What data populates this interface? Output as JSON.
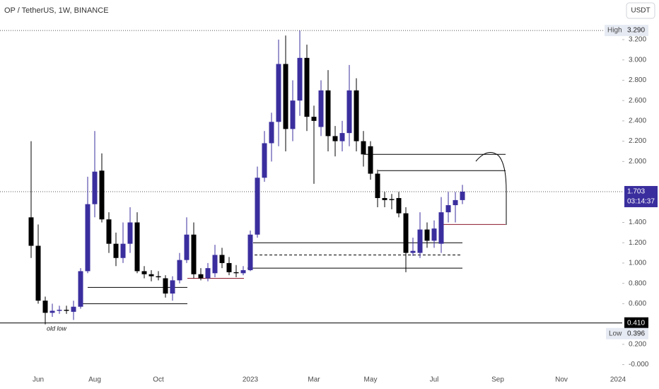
{
  "chart_data": {
    "type": "candlestick",
    "title": "OP / TetherUS, 1W, BINANCE",
    "currency_button": "USDT",
    "annotation": "old low",
    "up_color": "#3a2e9e",
    "down_color": "#000000",
    "categories": [
      null,
      "Jun",
      null,
      null,
      null,
      null,
      null,
      null,
      null,
      "Aug",
      null,
      null,
      null,
      null,
      null,
      null,
      null,
      null,
      "Oct",
      null,
      null,
      null,
      null,
      null,
      null,
      null,
      null,
      null,
      null,
      null,
      null,
      "2023",
      null,
      null,
      null,
      null,
      null,
      null,
      null,
      null,
      "Mar",
      null,
      null,
      null,
      null,
      null,
      null,
      null,
      "May",
      null,
      null,
      null,
      null,
      null,
      null,
      null,
      null,
      "Jul",
      null,
      null,
      null,
      null,
      null,
      null,
      null,
      null,
      "Sep",
      null,
      null,
      null,
      null,
      null,
      null,
      null,
      null,
      "Nov",
      null,
      null,
      null,
      null,
      null,
      null,
      null,
      "2024"
    ],
    "open": [
      1.45,
      1.17,
      0.63,
      0.51,
      0.53,
      0.54,
      0.52,
      0.57,
      0.92,
      1.58,
      1.91,
      1.43,
      1.19,
      1.05,
      1.19,
      1.4,
      0.92,
      0.89,
      0.87,
      0.85,
      0.7,
      0.83,
      1.03,
      1.28,
      0.89,
      0.85,
      0.9,
      1.08,
      1.0,
      0.91,
      0.9,
      0.93,
      1.28,
      1.84,
      2.18,
      2.39,
      2.96,
      2.32,
      2.6,
      3.02,
      2.44,
      2.34,
      2.7,
      2.25,
      2.2,
      2.28,
      2.7,
      2.2,
      2.15,
      1.88,
      1.64,
      1.63,
      1.64,
      1.49,
      1.1,
      1.1,
      1.33,
      1.22,
      1.19,
      1.5,
      1.57,
      1.62,
      null,
      null,
      null,
      null,
      null,
      null,
      null,
      null,
      null,
      null,
      null,
      null,
      null,
      null,
      null,
      null,
      null,
      null,
      null,
      null,
      null,
      null
    ],
    "high": [
      2.2,
      1.38,
      0.67,
      0.6,
      0.58,
      0.58,
      0.63,
      0.95,
      1.85,
      2.3,
      2.08,
      1.5,
      1.3,
      1.4,
      1.55,
      1.5,
      0.97,
      0.93,
      0.92,
      0.88,
      0.87,
      1.1,
      1.45,
      1.4,
      0.95,
      1.0,
      1.18,
      1.15,
      1.06,
      0.98,
      0.97,
      1.32,
      1.95,
      2.3,
      2.48,
      3.2,
      3.24,
      2.8,
      3.29,
      3.15,
      2.55,
      2.8,
      2.9,
      2.35,
      2.4,
      2.95,
      2.82,
      2.3,
      2.2,
      1.92,
      1.7,
      1.68,
      1.7,
      1.55,
      1.25,
      1.5,
      1.4,
      1.42,
      1.65,
      1.7,
      1.7,
      1.77,
      null,
      null,
      null,
      null,
      null,
      null,
      null,
      null,
      null,
      null,
      null,
      null,
      null,
      null,
      null,
      null,
      null,
      null,
      null,
      null,
      null,
      null
    ],
    "low": [
      1.05,
      0.6,
      0.396,
      0.47,
      0.5,
      0.5,
      0.44,
      0.55,
      0.9,
      1.45,
      1.4,
      1.1,
      0.97,
      1.0,
      1.1,
      0.9,
      0.85,
      0.82,
      0.83,
      0.66,
      0.63,
      0.8,
      1.0,
      0.85,
      0.83,
      0.82,
      0.86,
      0.95,
      0.88,
      0.86,
      0.88,
      0.92,
      1.25,
      1.8,
      2.0,
      2.15,
      2.1,
      2.2,
      2.45,
      2.3,
      1.78,
      2.25,
      2.1,
      2.05,
      2.1,
      2.15,
      2.1,
      1.95,
      1.82,
      1.55,
      1.55,
      1.53,
      1.45,
      0.91,
      1.07,
      1.05,
      1.15,
      1.15,
      1.1,
      1.4,
      1.4,
      1.58,
      null,
      null,
      null,
      null,
      null,
      null,
      null,
      null,
      null,
      null,
      null,
      null,
      null,
      null,
      null,
      null,
      null,
      null,
      null,
      null,
      null,
      null
    ],
    "close": [
      1.17,
      0.63,
      0.51,
      0.53,
      0.54,
      0.53,
      0.57,
      0.92,
      1.58,
      1.9,
      1.43,
      1.19,
      1.05,
      1.19,
      1.4,
      0.92,
      0.89,
      0.87,
      0.86,
      0.7,
      0.83,
      1.03,
      1.28,
      0.89,
      0.85,
      0.95,
      1.08,
      1.0,
      0.91,
      0.9,
      0.93,
      1.28,
      1.84,
      2.18,
      2.39,
      2.96,
      2.32,
      2.6,
      3.02,
      2.44,
      2.4,
      2.7,
      2.25,
      2.2,
      2.28,
      2.7,
      2.2,
      2.07,
      1.88,
      1.64,
      1.62,
      1.62,
      1.49,
      1.1,
      1.12,
      1.33,
      1.22,
      1.34,
      1.5,
      1.57,
      1.62,
      1.703,
      null,
      null,
      null,
      null,
      null,
      null,
      null,
      null,
      null,
      null,
      null,
      null,
      null,
      null,
      null,
      null,
      null,
      null,
      null,
      null,
      null,
      null
    ],
    "ylim": [
      -0.24,
      3.59
    ],
    "yticks": [
      {
        "value": 3.2,
        "label": "3.200"
      },
      {
        "value": 3.0,
        "label": "3.000"
      },
      {
        "value": 2.8,
        "label": "2.800"
      },
      {
        "value": 2.6,
        "label": "2.600"
      },
      {
        "value": 2.4,
        "label": "2.400"
      },
      {
        "value": 2.2,
        "label": "2.200"
      },
      {
        "value": 2.0,
        "label": "2.000"
      },
      {
        "value": 1.4,
        "label": "1.400"
      },
      {
        "value": 1.2,
        "label": "1.200"
      },
      {
        "value": 1.0,
        "label": "1.000"
      },
      {
        "value": 0.8,
        "label": "0.800"
      },
      {
        "value": 0.6,
        "label": "0.600"
      },
      {
        "value": 0.2,
        "label": "0.200"
      },
      {
        "value": 0,
        "label": "-0.000"
      }
    ],
    "levels": [
      {
        "value": 0.76,
        "color": "#000000"
      },
      {
        "value": 0.6,
        "color": "#000000"
      },
      {
        "value": 0.85,
        "color": "#8b1a2b"
      },
      {
        "value": 0.95,
        "color": "#000000"
      },
      {
        "value": 1.08,
        "color": "#000000",
        "dashed": true
      },
      {
        "value": 1.2,
        "color": "#000000"
      },
      {
        "value": 1.38,
        "color": "#8b1a2b"
      },
      {
        "value": 2.07,
        "color": "#000000"
      },
      {
        "value": 1.91,
        "color": "#000000"
      }
    ],
    "high_marker": {
      "name": "High",
      "value": 3.29,
      "label": "3.290"
    },
    "low_marker": {
      "name": "Low",
      "value": 0.396,
      "label": "0.396"
    },
    "last_price": {
      "value": 1.703,
      "label": "1.703",
      "countdown": "03:14:37"
    },
    "level_line": {
      "value": 0.41,
      "label": "0.410"
    }
  }
}
